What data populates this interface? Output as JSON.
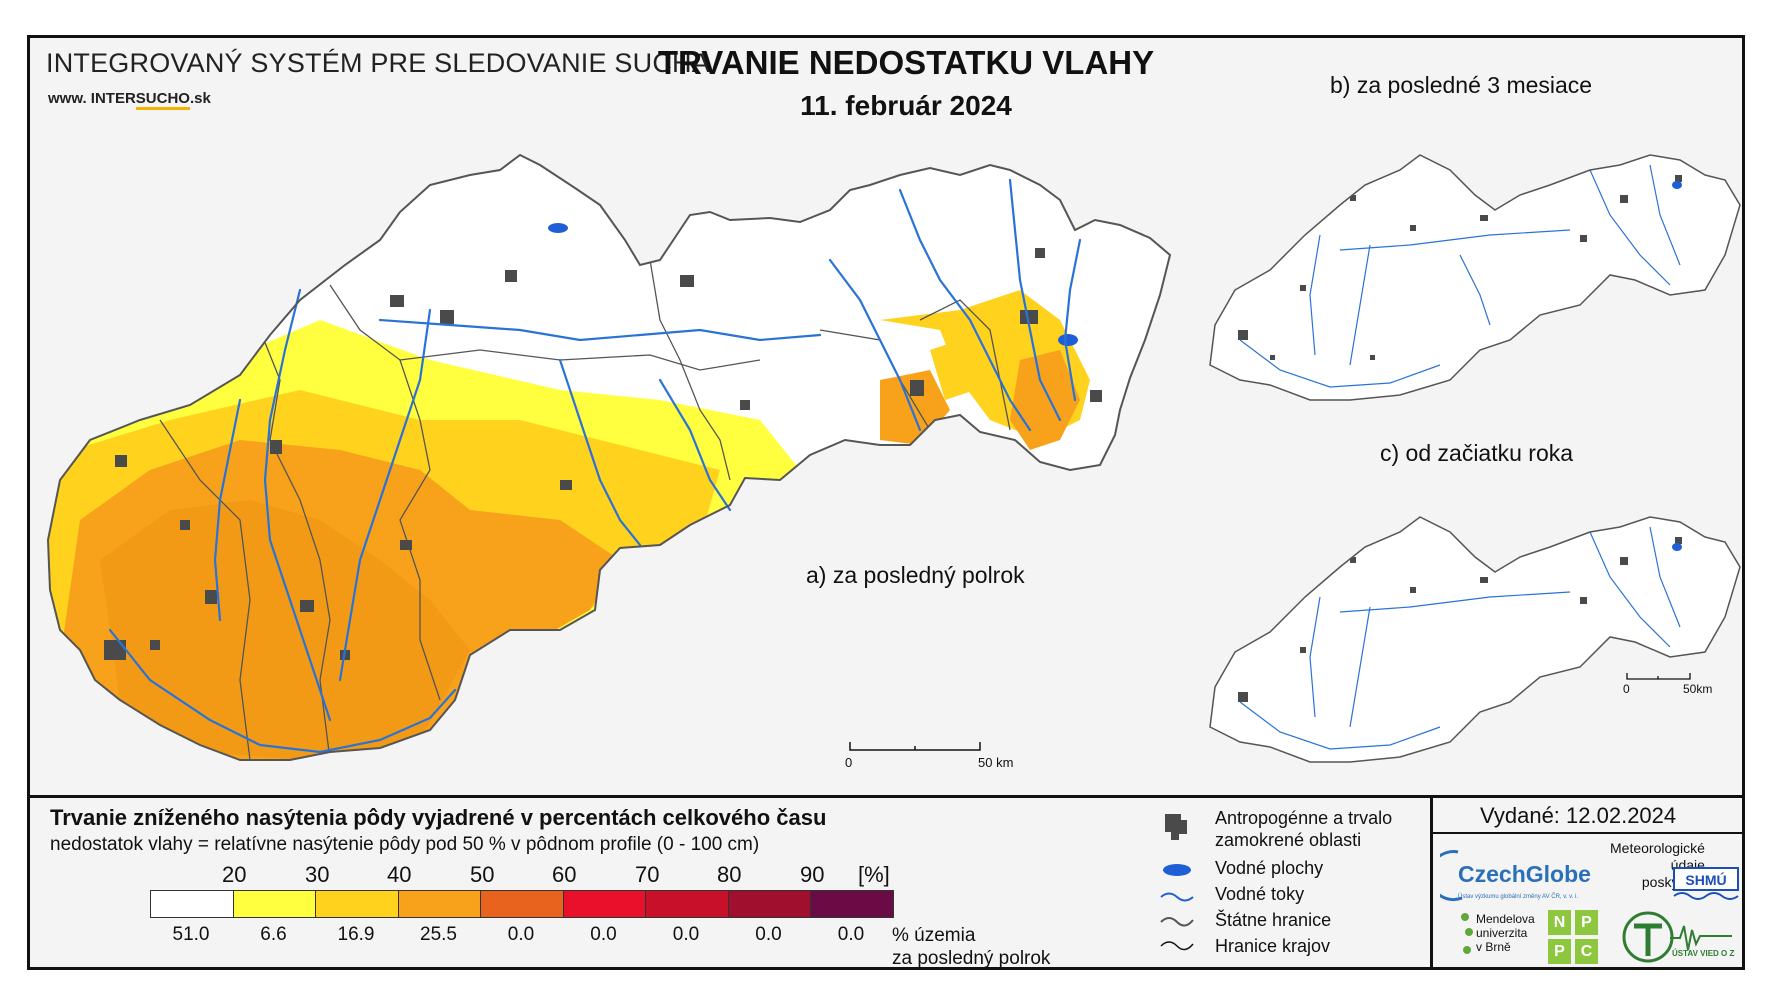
{
  "header": {
    "system_name": "INTEGROVANÝ SYSTÉM PRE SLEDOVANIE SUCHA",
    "url_prefix": "www. INTER",
    "url_highlight": "SUCHO",
    "url_suffix": ".sk",
    "title": "TRVANIE NEDOSTATKU VLAHY",
    "date": "11. február 2024"
  },
  "maps": {
    "main_caption": "a) za posledný polrok",
    "small_top_caption": "b) za posledné 3 mesiace",
    "small_bottom_caption": "c) od začiatku roka",
    "main_scale": {
      "start": "0",
      "end": "50 km"
    },
    "small_scale": {
      "start": "0",
      "end": "50km"
    }
  },
  "legend": {
    "title": "Trvanie zníženého nasýtenia pôdy vyjadrené v percentách celkového času",
    "subtitle": "nedostatok vlahy = relatívne nasýtenie pôdy pod 50 % v pôdnom profile (0 - 100 cm)",
    "breaks": [
      "20",
      "30",
      "40",
      "50",
      "60",
      "70",
      "80",
      "90"
    ],
    "unit": "[%]",
    "classes": [
      {
        "color": "#ffffff",
        "pct": "51.0"
      },
      {
        "color": "#ffff40",
        "pct": "6.6"
      },
      {
        "color": "#ffd21e",
        "pct": "16.9"
      },
      {
        "color": "#f7a21a",
        "pct": "25.5"
      },
      {
        "color": "#e8641e",
        "pct": "0.0"
      },
      {
        "color": "#e8102a",
        "pct": "0.0"
      },
      {
        "color": "#c8102a",
        "pct": "0.0"
      },
      {
        "color": "#a0102e",
        "pct": "0.0"
      },
      {
        "color": "#6b0b46",
        "pct": "0.0"
      }
    ],
    "pct_caption": "% územia\nza posledný polrok"
  },
  "symbols": {
    "anthropogenic": "Antropogénne a trvalo",
    "anthropogenic_2": "zamokrené oblasti",
    "water_bodies": "Vodné plochy",
    "rivers": "Vodné toky",
    "state_border": "Štátne hranice",
    "region_border": "Hranice krajov"
  },
  "issued": "Vydané: 12.02.2024",
  "logos": {
    "czechglobe": "CzechGlobe",
    "czechglobe_sub": "Ústav výzkumu globální změny AV ČR, v. v. i.",
    "meteo": "Meteorologické\núdaje\nposkytuje:",
    "shmu": "SHMÚ",
    "mendel": "Mendelova\nuniverzita\nv Brně",
    "nppc": [
      "N",
      "P",
      "P",
      "C"
    ],
    "uvz": "ÚSTAV VIED O ZEMI"
  },
  "colors": {
    "river": "#2a73d6",
    "water": "#1f5fd6",
    "urban": "#4a4a4a",
    "border": "#555555"
  }
}
